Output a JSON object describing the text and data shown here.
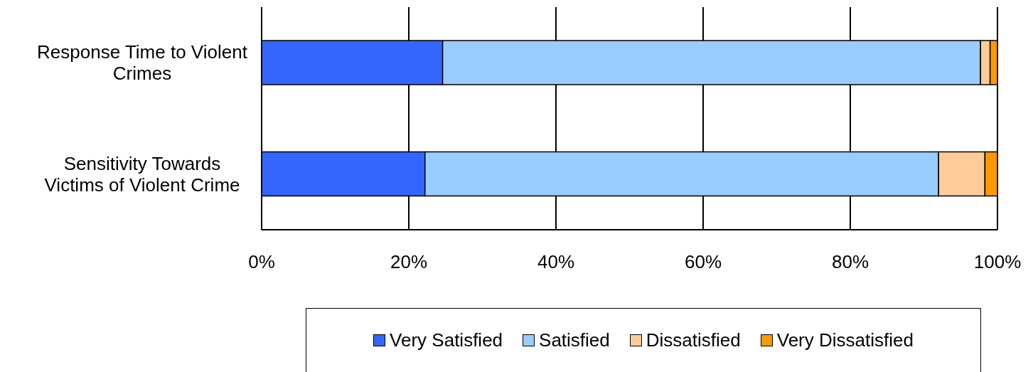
{
  "chart_data": {
    "type": "bar",
    "orientation": "horizontal",
    "stacked": true,
    "categories": [
      "Response Time to Violent Crimes",
      "Sensitivity Towards Victims of Violent Crime"
    ],
    "series": [
      {
        "name": "Very Satisfied",
        "color": "#3366ff",
        "values": [
          24.6,
          22.2
        ]
      },
      {
        "name": "Satisfied",
        "color": "#99ccff",
        "values": [
          73.1,
          69.8
        ]
      },
      {
        "name": "Dissatisfied",
        "color": "#ffcc99",
        "values": [
          1.3,
          6.3
        ]
      },
      {
        "name": "Very Dissatisfied",
        "color": "#ff9900",
        "values": [
          1.0,
          1.7
        ]
      }
    ],
    "xlim": [
      0,
      100
    ],
    "xticks": [
      {
        "value": 0,
        "label": "0%"
      },
      {
        "value": 20,
        "label": "20%"
      },
      {
        "value": 40,
        "label": "40%"
      },
      {
        "value": 60,
        "label": "60%"
      },
      {
        "value": 80,
        "label": "80%"
      },
      {
        "value": 100,
        "label": "100%"
      }
    ],
    "grid": "x",
    "legend": "bottom"
  }
}
